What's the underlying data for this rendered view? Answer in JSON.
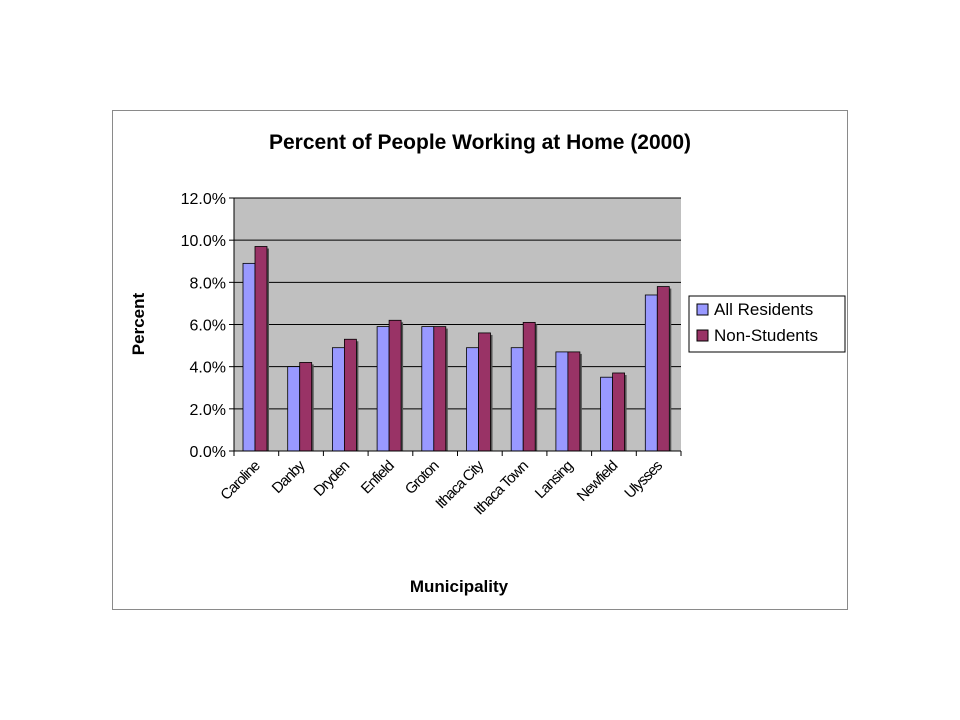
{
  "chart_data": {
    "type": "bar",
    "title": "Percent of People Working at Home (2000)",
    "xlabel": "Municipality",
    "ylabel": "Percent",
    "categories": [
      "Caroline",
      "Danby",
      "Dryden",
      "Enfield",
      "Groton",
      "Ithaca City",
      "Ithaca Town",
      "Lansing",
      "Newfield",
      "Ulysses"
    ],
    "series": [
      {
        "name": "All Residents",
        "color": "#9999ff",
        "values": [
          8.9,
          4.0,
          4.9,
          5.9,
          5.9,
          4.9,
          4.9,
          4.7,
          3.5,
          7.4
        ]
      },
      {
        "name": "Non-Students",
        "color": "#993366",
        "values": [
          9.7,
          4.2,
          5.3,
          6.2,
          5.9,
          5.6,
          6.1,
          4.7,
          3.7,
          7.8
        ]
      }
    ],
    "ylim": [
      0,
      12
    ],
    "yticks": [
      "0.0%",
      "2.0%",
      "4.0%",
      "6.0%",
      "8.0%",
      "10.0%",
      "12.0%"
    ],
    "plot_background": "#c0c0c0",
    "grid": true,
    "legend_position": "right"
  }
}
